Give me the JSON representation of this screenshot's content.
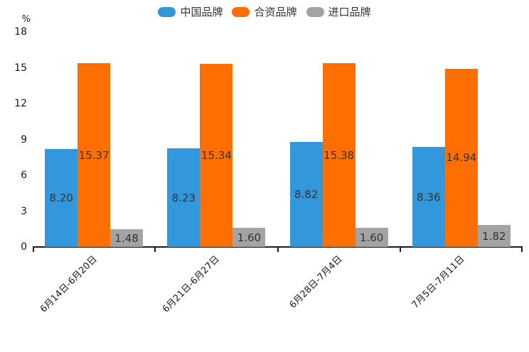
{
  "chart_data": {
    "type": "bar",
    "title": "",
    "unit_label": "%",
    "categories": [
      "6月14日-6月20日",
      "6月21日-6月27日",
      "6月28日-7月4日",
      "7月5日-7月11日"
    ],
    "series": [
      {
        "name": "中国品牌",
        "color": "#3398DB",
        "values": [
          8.2,
          8.23,
          8.82,
          8.36
        ]
      },
      {
        "name": "合资品牌",
        "color": "#FF6E00",
        "values": [
          15.37,
          15.34,
          15.38,
          14.94
        ]
      },
      {
        "name": "进口品牌",
        "color": "#A3A3A3",
        "values": [
          1.48,
          1.6,
          1.6,
          1.82
        ]
      }
    ],
    "value_labels": [
      [
        "8.20",
        "8.23",
        "8.82",
        "8.36"
      ],
      [
        "15.37",
        "15.34",
        "15.38",
        "14.94"
      ],
      [
        "1.48",
        "1.60",
        "1.60",
        "1.82"
      ]
    ],
    "yticks": [
      0,
      3,
      6,
      9,
      12,
      15,
      18
    ],
    "ylim": [
      0,
      18
    ],
    "value_label_decimals": 2,
    "grid": false,
    "legend_position": "top",
    "colors": {
      "axis": "#1a1a1a",
      "value_label": "#333333",
      "background": "#ffffff"
    }
  }
}
